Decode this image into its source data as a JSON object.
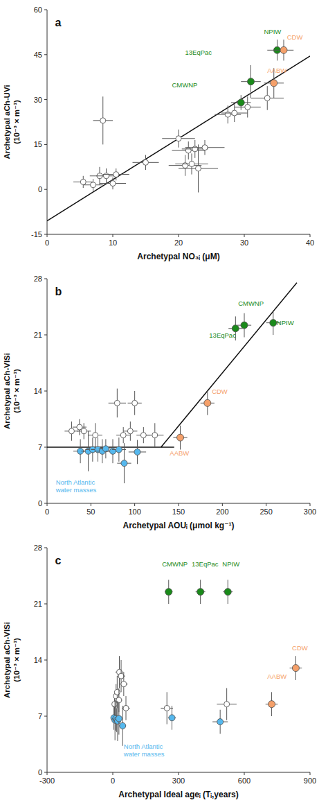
{
  "chart_data": [
    {
      "type": "scatter",
      "title": "a",
      "x_label": "Archetypal NO₃ᵢ (μM)",
      "y_label": "Archetypal aCh-UVi\n(10⁻³ × m⁻¹)",
      "xlim": [
        0,
        40
      ],
      "ylim": [
        -15,
        60
      ],
      "xticks": [
        0,
        10,
        20,
        30,
        40
      ],
      "yticks": [
        -15,
        0,
        15,
        30,
        45,
        60
      ],
      "grid": false,
      "series": [
        {
          "type": "line",
          "color": "#111111",
          "x": [
            0,
            40
          ],
          "values": [
            -10.5,
            44.5
          ]
        },
        {
          "color": "#ffffff",
          "x": [
            5.5,
            7.0,
            8.0,
            9.0,
            8.5,
            10.0,
            10.5,
            15.0,
            20.0,
            21.0,
            21.5,
            22.0,
            22.5,
            23.0,
            24.0,
            27.5,
            28.5,
            30.5,
            33.5
          ],
          "values": [
            2.5,
            1.5,
            4.5,
            4.5,
            23.0,
            2.0,
            5.0,
            9.0,
            17.0,
            8.0,
            13.0,
            8.5,
            13.5,
            7.0,
            14.0,
            25.0,
            25.5,
            27.5,
            30.5
          ],
          "x_err": [
            1.5,
            1.5,
            1.5,
            1.5,
            1.5,
            2.0,
            2.0,
            2.0,
            2.5,
            2.5,
            2.5,
            2.5,
            2.0,
            3.0,
            3.0,
            2.0,
            2.0,
            2.0,
            2.5
          ],
          "y_err": [
            2.0,
            2.0,
            3.0,
            2.5,
            8.0,
            2.0,
            2.0,
            2.5,
            3.0,
            3.5,
            3.0,
            3.5,
            3.0,
            8.0,
            2.5,
            3.0,
            3.0,
            3.5,
            4.0
          ]
        },
        {
          "colors": [
            "#1a8a1a",
            "#1a8a1a",
            "#1a8a1a",
            "#f5a06a",
            "#f5a06a"
          ],
          "x": [
            29.5,
            31.0,
            35.0,
            34.5,
            36.0
          ],
          "values": [
            29.0,
            36.0,
            46.5,
            35.5,
            46.5
          ],
          "x_err": [
            1.5,
            1.5,
            1.5,
            1.5,
            1.5
          ],
          "y_err": [
            2.5,
            5.5,
            3.5,
            5.0,
            3.5
          ]
        }
      ],
      "annotations": [
        {
          "text": "CMWNP",
          "x": 19.0,
          "y": 33.5,
          "color": "#1a8a1a"
        },
        {
          "text": "13EqPac",
          "x": 21.0,
          "y": 44.5,
          "color": "#1a8a1a"
        },
        {
          "text": "NPIW",
          "x": 33.0,
          "y": 51.5,
          "color": "#1a8a1a"
        },
        {
          "text": "AABW",
          "x": 33.5,
          "y": 38.5,
          "color": "#f5a06a"
        },
        {
          "text": "CDW",
          "x": 36.5,
          "y": 49.5,
          "color": "#f5a06a"
        }
      ]
    },
    {
      "type": "scatter",
      "title": "b",
      "x_label": "Archetypal AOUᵢ (μmol kg⁻¹)",
      "y_label": "Archetypal aCh-VISi\n(10⁻³ × m⁻¹)",
      "xlim": [
        0,
        300
      ],
      "ylim": [
        0,
        28
      ],
      "xticks": [
        0,
        50,
        100,
        150,
        200,
        250,
        300
      ],
      "yticks": [
        0,
        7,
        14,
        21,
        28
      ],
      "grid": false,
      "series": [
        {
          "type": "line",
          "color": "#111111",
          "x": [
            130,
            285
          ],
          "values": [
            7.0,
            27.5
          ]
        },
        {
          "type": "line",
          "color": "#111111",
          "x": [
            0,
            145
          ],
          "values": [
            7.0,
            7.0
          ]
        },
        {
          "color": "#ffffff",
          "x": [
            28.0,
            37.0,
            42.0,
            55.0,
            80.0,
            87.0,
            95.0,
            100.0,
            110.0,
            123.0
          ],
          "values": [
            9.0,
            9.5,
            9.0,
            8.5,
            12.5,
            8.5,
            9.0,
            12.5,
            8.5,
            8.5
          ],
          "x_err": [
            8.0,
            8.0,
            8.0,
            8.0,
            10.0,
            8.0,
            8.0,
            8.0,
            8.0,
            10.0
          ],
          "y_err": [
            1.2,
            1.0,
            1.0,
            1.5,
            1.8,
            1.0,
            1.2,
            1.5,
            1.0,
            1.5
          ]
        },
        {
          "color": "#55b8ee",
          "x": [
            38.0,
            47.0,
            52.0,
            58.0,
            63.0,
            67.0,
            75.0,
            82.0,
            88.0,
            103.0
          ],
          "values": [
            6.5,
            6.5,
            6.7,
            6.7,
            6.5,
            6.8,
            6.5,
            6.7,
            5.0,
            6.4
          ],
          "x_err": [
            8.0,
            8.0,
            8.0,
            8.0,
            8.0,
            8.0,
            8.0,
            8.0,
            8.0,
            10.0
          ],
          "y_err": [
            1.5,
            2.5,
            1.5,
            1.5,
            1.5,
            1.2,
            1.5,
            1.5,
            2.5,
            1.5
          ]
        },
        {
          "colors": [
            "#1a8a1a",
            "#1a8a1a",
            "#1a8a1a",
            "#f5a06a",
            "#f5a06a"
          ],
          "x": [
            225.0,
            215.0,
            258.0,
            152.0,
            183.0
          ],
          "values": [
            22.2,
            21.8,
            22.5,
            8.2,
            12.5
          ],
          "x_err": [
            8.0,
            8.0,
            8.0,
            8.0,
            8.0
          ],
          "y_err": [
            1.5,
            1.5,
            1.5,
            1.5,
            1.5
          ]
        }
      ],
      "annotations": [
        {
          "text": "CMWNP",
          "x": 218.0,
          "y": 24.5,
          "color": "#1a8a1a"
        },
        {
          "text": "13EqPac",
          "x": 185.0,
          "y": 20.5,
          "color": "#1a8a1a"
        },
        {
          "text": "NPIW",
          "x": 262.0,
          "y": 22.0,
          "color": "#1a8a1a"
        },
        {
          "text": "AABW",
          "x": 140.0,
          "y": 5.8,
          "color": "#f5a06a"
        },
        {
          "text": "CDW",
          "x": 188.0,
          "y": 13.5,
          "color": "#f5a06a"
        },
        {
          "text": "North Atlantic\nwater masses",
          "x": 10.0,
          "y": 1.2,
          "color": "#55b8ee"
        }
      ]
    },
    {
      "type": "scatter",
      "title": "c",
      "x_label": "Archetypal Ideal ageᵢ (Tᵢ,years)",
      "y_label": "Archetypal aCh-VISi\n(10⁻³ × m⁻¹)",
      "xlim": [
        -300,
        900
      ],
      "ylim": [
        0,
        28
      ],
      "xticks": [
        -300,
        0,
        300,
        600,
        900
      ],
      "yticks": [
        0,
        7,
        14,
        21,
        28
      ],
      "grid": false,
      "series": [
        {
          "color": "#ffffff",
          "x": [
            8.0,
            15.0,
            20.0,
            28.0,
            30.0,
            38.0,
            50.0,
            60.0,
            247.0,
            520.0
          ],
          "values": [
            8.5,
            9.5,
            10.0,
            9.0,
            12.5,
            12.0,
            11.0,
            8.0,
            8.0,
            8.5
          ],
          "x_err": [
            8.0,
            10.0,
            12.0,
            15.0,
            18.0,
            18.0,
            18.0,
            18.0,
            28.0,
            45.0
          ],
          "y_err": [
            1.5,
            1.5,
            2.0,
            1.5,
            2.0,
            2.0,
            1.5,
            1.5,
            2.0,
            2.0
          ]
        },
        {
          "color": "#55b8ee",
          "x": [
            5.0,
            10.0,
            14.0,
            18.0,
            22.0,
            28.0,
            45.0,
            270.0,
            490.0
          ],
          "values": [
            6.8,
            6.5,
            6.7,
            6.5,
            6.4,
            6.7,
            5.8,
            6.8,
            6.3
          ],
          "x_err": [
            6.0,
            8.0,
            8.0,
            12.0,
            12.0,
            12.0,
            15.0,
            18.0,
            35.0
          ],
          "y_err": [
            1.5,
            2.5,
            1.5,
            1.5,
            2.5,
            2.0,
            2.5,
            1.5,
            1.5
          ]
        },
        {
          "colors": [
            "#1a8a1a",
            "#1a8a1a",
            "#1a8a1a",
            "#f5a06a",
            "#f5a06a"
          ],
          "x": [
            255.0,
            400.0,
            525.0,
            725.0,
            835.0
          ],
          "values": [
            22.5,
            22.5,
            22.5,
            8.5,
            13.0
          ],
          "x_err": [
            18.0,
            22.0,
            22.0,
            28.0,
            28.0
          ],
          "y_err": [
            1.5,
            1.5,
            1.5,
            1.5,
            1.5
          ]
        }
      ],
      "annotations": [
        {
          "text": "CMWNP",
          "x": 225.0,
          "y": 25.5,
          "color": "#1a8a1a"
        },
        {
          "text": "13EqPac",
          "x": 360.0,
          "y": 25.5,
          "color": "#1a8a1a"
        },
        {
          "text": "NPIW",
          "x": 500.0,
          "y": 25.5,
          "color": "#1a8a1a"
        },
        {
          "text": "AABW",
          "x": 705.0,
          "y": 11.5,
          "color": "#f5a06a"
        },
        {
          "text": "CDW",
          "x": 818.0,
          "y": 15.0,
          "color": "#f5a06a"
        },
        {
          "text": "North Atlantic\nwater masses",
          "x": 50.0,
          "y": 1.8,
          "color": "#55b8ee"
        }
      ]
    }
  ]
}
